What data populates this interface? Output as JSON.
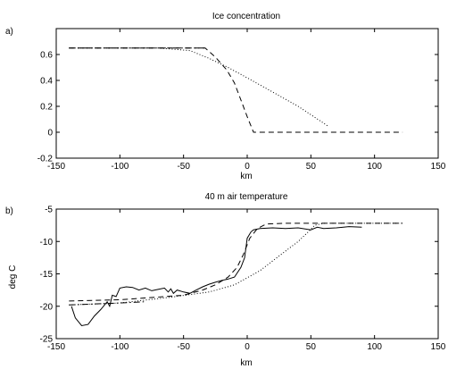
{
  "chart_data": [
    {
      "type": "line",
      "panel_label": "a)",
      "title": "Ice concentration",
      "xlabel": "km",
      "ylabel": "",
      "xlim": [
        -150,
        150
      ],
      "ylim": [
        -0.2,
        0.8
      ],
      "xticks": [
        -150,
        -100,
        -50,
        0,
        50,
        100,
        150
      ],
      "yticks": [
        -0.2,
        0,
        0.2,
        0.4,
        0.6
      ],
      "ytick_labels": [
        "-0.2",
        "0",
        "0.2",
        "0.4",
        "0.6"
      ],
      "grid": false,
      "series": [
        {
          "style": "dashed",
          "points": [
            [
              -140,
              0.65
            ],
            [
              -33,
              0.65
            ],
            [
              -25,
              0.58
            ],
            [
              -16,
              0.48
            ],
            [
              -10,
              0.38
            ],
            [
              -5,
              0.25
            ],
            [
              0,
              0.12
            ],
            [
              5,
              0
            ],
            [
              122,
              0
            ]
          ]
        },
        {
          "style": "dotted",
          "points": [
            [
              -140,
              0.65
            ],
            [
              -70,
              0.65
            ],
            [
              -45,
              0.63
            ],
            [
              -30,
              0.57
            ],
            [
              -15,
              0.5
            ],
            [
              0,
              0.42
            ],
            [
              20,
              0.31
            ],
            [
              40,
              0.2
            ],
            [
              60,
              0.07
            ],
            [
              63,
              0.05
            ]
          ]
        },
        {
          "style": "dashdot",
          "points": [
            [
              -140,
              0.65
            ],
            [
              -33,
              0.65
            ]
          ]
        }
      ]
    },
    {
      "type": "line",
      "panel_label": "b)",
      "title": "40 m air temperature",
      "xlabel": "km",
      "ylabel": "deg C",
      "xlim": [
        -150,
        150
      ],
      "ylim": [
        -25,
        -5
      ],
      "xticks": [
        -150,
        -100,
        -50,
        0,
        50,
        100,
        150
      ],
      "yticks": [
        -25,
        -20,
        -15,
        -10,
        -5
      ],
      "ytick_labels": [
        "-25",
        "-20",
        "-15",
        "-10",
        "-5"
      ],
      "grid": false,
      "series": [
        {
          "style": "solid",
          "points": [
            [
              -138,
              -20
            ],
            [
              -135,
              -21.8
            ],
            [
              -130,
              -23
            ],
            [
              -125,
              -22.8
            ],
            [
              -120,
              -21.5
            ],
            [
              -115,
              -20.5
            ],
            [
              -110,
              -19.3
            ],
            [
              -108,
              -20
            ],
            [
              -106,
              -18.3
            ],
            [
              -103,
              -18.5
            ],
            [
              -100,
              -17.2
            ],
            [
              -95,
              -17
            ],
            [
              -90,
              -17.1
            ],
            [
              -85,
              -17.5
            ],
            [
              -80,
              -17.2
            ],
            [
              -75,
              -17.6
            ],
            [
              -70,
              -17.4
            ],
            [
              -65,
              -17.2
            ],
            [
              -62,
              -17.8
            ],
            [
              -60,
              -17.3
            ],
            [
              -58,
              -18
            ],
            [
              -55,
              -17.5
            ],
            [
              -50,
              -17.8
            ],
            [
              -45,
              -18
            ],
            [
              -40,
              -17.5
            ],
            [
              -35,
              -17
            ],
            [
              -30,
              -16.6
            ],
            [
              -25,
              -16.3
            ],
            [
              -20,
              -16
            ],
            [
              -15,
              -15.8
            ],
            [
              -10,
              -15.5
            ],
            [
              -5,
              -14
            ],
            [
              -2,
              -12.5
            ],
            [
              0,
              -9.5
            ],
            [
              3,
              -8.5
            ],
            [
              5,
              -8.2
            ],
            [
              10,
              -8
            ],
            [
              20,
              -7.9
            ],
            [
              30,
              -8
            ],
            [
              40,
              -7.9
            ],
            [
              50,
              -8.2
            ],
            [
              55,
              -7.8
            ],
            [
              60,
              -8
            ],
            [
              70,
              -7.9
            ],
            [
              80,
              -7.7
            ],
            [
              90,
              -7.8
            ]
          ]
        },
        {
          "style": "dashed",
          "points": [
            [
              -140,
              -19.2
            ],
            [
              -100,
              -19
            ],
            [
              -50,
              -18.3
            ],
            [
              -35,
              -17.5
            ],
            [
              -25,
              -16.7
            ],
            [
              -15,
              -15.5
            ],
            [
              -8,
              -14
            ],
            [
              -3,
              -12
            ],
            [
              2,
              -9.5
            ],
            [
              8,
              -8
            ],
            [
              15,
              -7.3
            ],
            [
              30,
              -7.2
            ],
            [
              60,
              -7.2
            ],
            [
              122,
              -7.2
            ]
          ]
        },
        {
          "style": "dotted",
          "points": [
            [
              -140,
              -19.8
            ],
            [
              -100,
              -19.5
            ],
            [
              -60,
              -18.6
            ],
            [
              -30,
              -17.8
            ],
            [
              -10,
              -16.7
            ],
            [
              0,
              -15.6
            ],
            [
              10,
              -14.5
            ],
            [
              20,
              -13
            ],
            [
              30,
              -11.5
            ],
            [
              40,
              -10
            ],
            [
              48,
              -8.5
            ],
            [
              53,
              -7.5
            ],
            [
              60,
              -7.2
            ],
            [
              122,
              -7.2
            ]
          ]
        },
        {
          "style": "dashdot",
          "points": [
            [
              -140,
              -19.8
            ],
            [
              -100,
              -19.5
            ],
            [
              -80,
              -19.3
            ]
          ]
        }
      ]
    }
  ]
}
